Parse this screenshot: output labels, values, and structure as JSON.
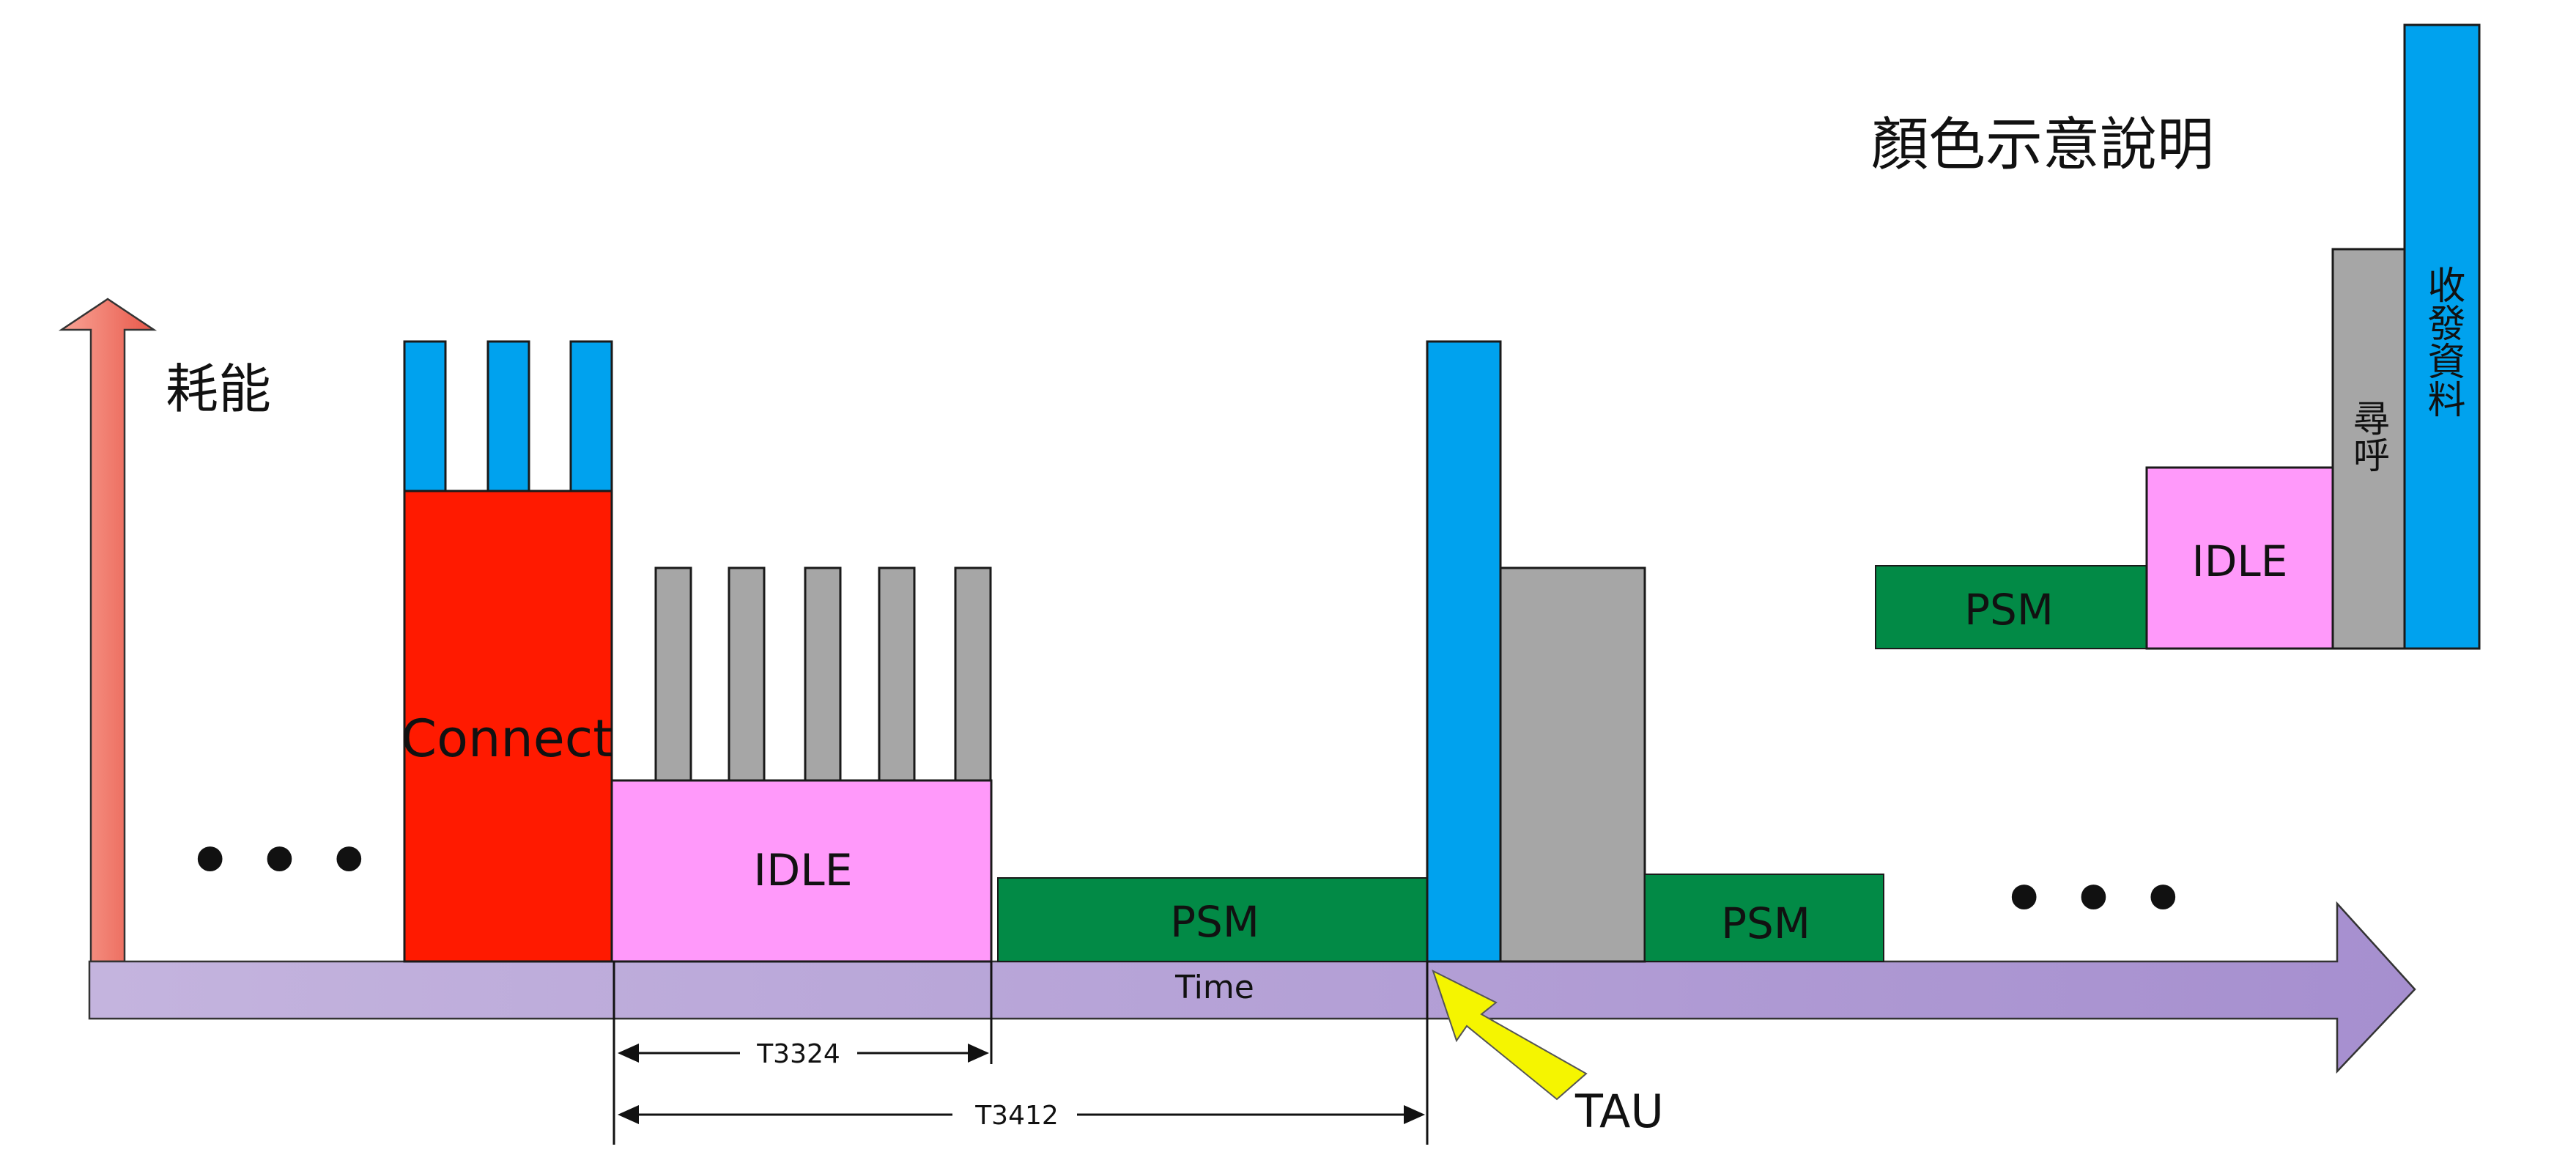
{
  "colors": {
    "connect": "#ff1a00",
    "data": "#00a2ee",
    "paging": "#a6a6a6",
    "idle": "#ff99fa",
    "psm": "#028a46",
    "time_axis": "#b7a6d6",
    "power_axis": "#f06b5e",
    "tau_arrow": "#f5f500"
  },
  "labels": {
    "power_axis": "耗能",
    "connect": "Connect",
    "idle": "IDLE",
    "psm_1": "PSM",
    "psm_2": "PSM",
    "time_axis": "Time",
    "t3324": "T3324",
    "t3412": "T3412",
    "tau": "TAU",
    "ellipsis": "• • •"
  },
  "legend": {
    "title": "顏色示意說明",
    "psm": "PSM",
    "idle": "IDLE",
    "paging": "尋呼",
    "data": "收發資料"
  }
}
